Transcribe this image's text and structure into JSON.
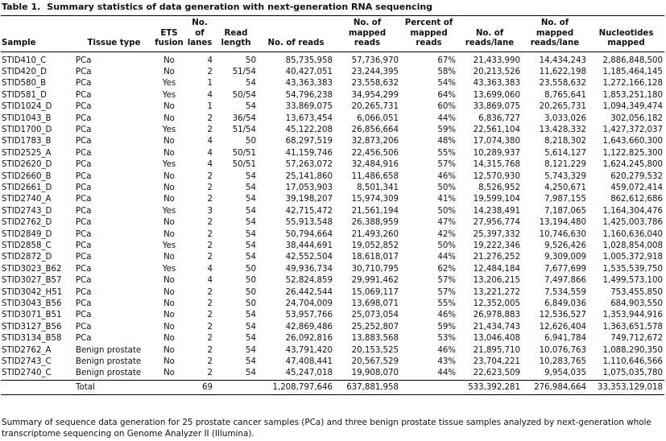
{
  "header": {
    "label": "Table 1.",
    "title": "Summary statistics of data generation with next-generation RNA sequencing"
  },
  "table": {
    "columns": [
      "Sample",
      "Tissue type",
      "ETS fusion",
      "No. of lanes",
      "Read length",
      "No. of reads",
      "No. of mapped reads",
      "Percent of mapped reads",
      "No. of reads/lane",
      "No. of mapped reads/lane",
      "Nucleotides mapped"
    ],
    "rows": [
      [
        "STID410_C",
        "PCa",
        "No",
        "4",
        "50",
        "85,735,958",
        "57,736,970",
        "67%",
        "21,433,990",
        "14,434,243",
        "2,886,848,500"
      ],
      [
        "STID420_D",
        "PCa",
        "No",
        "2",
        "51/54",
        "40,427,051",
        "23,244,395",
        "58%",
        "20,213,526",
        "11,622,198",
        "1,185,464,145"
      ],
      [
        "STID580_B",
        "PCa",
        "Yes",
        "1",
        "54",
        "43,363,383",
        "23,558,632",
        "54%",
        "43,363,383",
        "23,558,632",
        "1,272,166,128"
      ],
      [
        "STID581_D",
        "PCa",
        "Yes",
        "4",
        "50/54",
        "54,796,238",
        "34,954,299",
        "64%",
        "13,699,060",
        "8,765,641",
        "1,853,251,180"
      ],
      [
        "STID1024_D",
        "PCa",
        "No",
        "1",
        "54",
        "33,869,075",
        "20,265,731",
        "60%",
        "33,869,075",
        "20,265,731",
        "1,094,349,474"
      ],
      [
        "STID1043_B",
        "PCa",
        "No",
        "2",
        "36/54",
        "13,673,454",
        "6,066,051",
        "44%",
        "6,836,727",
        "3,033,026",
        "302,056,182"
      ],
      [
        "STID1700_D",
        "PCa",
        "Yes",
        "2",
        "51/54",
        "45,122,208",
        "26,856,664",
        "59%",
        "22,561,104",
        "13,428,332",
        "1,427,372,037"
      ],
      [
        "STID1783_B",
        "PCa",
        "No",
        "4",
        "50",
        "68,297,519",
        "32,873,206",
        "48%",
        "17,074,380",
        "8,218,302",
        "1,643,660,300"
      ],
      [
        "STID2525_A",
        "PCa",
        "No",
        "4",
        "50/51",
        "41,159,746",
        "22,456,506",
        "55%",
        "10,289,937",
        "5,614,127",
        "1,122,825,300"
      ],
      [
        "STID2620_D",
        "PCa",
        "Yes",
        "4",
        "50/51",
        "57,263,072",
        "32,484,916",
        "57%",
        "14,315,768",
        "8,121,229",
        "1,624,245,800"
      ],
      [
        "STID2660_B",
        "PCa",
        "No",
        "2",
        "54",
        "25,141,860",
        "11,486,658",
        "46%",
        "12,570,930",
        "5,743,329",
        "620,279,532"
      ],
      [
        "STID2661_D",
        "PCa",
        "No",
        "2",
        "54",
        "17,053,903",
        "8,501,341",
        "50%",
        "8,526,952",
        "4,250,671",
        "459,072,414"
      ],
      [
        "STID2740_A",
        "PCa",
        "No",
        "2",
        "54",
        "39,198,207",
        "15,974,309",
        "41%",
        "19,599,104",
        "7,987,155",
        "862,612,686"
      ],
      [
        "STID2743_D",
        "PCa",
        "Yes",
        "3",
        "54",
        "42,715,472",
        "21,561,194",
        "50%",
        "14,238,491",
        "7,187,065",
        "1,164,304,476"
      ],
      [
        "STID2762_D",
        "PCa",
        "No",
        "2",
        "54",
        "55,913,548",
        "26,388,959",
        "47%",
        "27,956,774",
        "13,194,480",
        "1,425,003,786"
      ],
      [
        "STID2849_D",
        "PCa",
        "No",
        "2",
        "54",
        "50,794,664",
        "21,493,260",
        "42%",
        "25,397,332",
        "10,746,630",
        "1,160,636,040"
      ],
      [
        "STID2858_C",
        "PCa",
        "Yes",
        "2",
        "54",
        "38,444,691",
        "19,052,852",
        "50%",
        "19,222,346",
        "9,526,426",
        "1,028,854,008"
      ],
      [
        "STID2872_D",
        "PCa",
        "No",
        "2",
        "54",
        "42,552,504",
        "18,618,017",
        "44%",
        "21,276,252",
        "9,309,009",
        "1,005,372,918"
      ],
      [
        "STID3023_B62",
        "PCa",
        "Yes",
        "4",
        "50",
        "49,936,734",
        "30,710,795",
        "62%",
        "12,484,184",
        "7,677,699",
        "1,535,539,750"
      ],
      [
        "STID3027_B57",
        "PCa",
        "No",
        "4",
        "50",
        "52,824,859",
        "29,991,462",
        "57%",
        "13,206,215",
        "7,497,866",
        "1,499,573,100"
      ],
      [
        "STID3042_H51",
        "PCa",
        "No",
        "2",
        "50",
        "26,442,544",
        "15,069,117",
        "57%",
        "13,221,272",
        "7,534,559",
        "753,455,850"
      ],
      [
        "STID3043_B56",
        "PCa",
        "No",
        "2",
        "50",
        "24,704,009",
        "13,698,071",
        "55%",
        "12,352,005",
        "6,849,036",
        "684,903,550"
      ],
      [
        "STID3071_B51",
        "PCa",
        "No",
        "2",
        "54",
        "53,957,766",
        "25,073,054",
        "46%",
        "26,978,883",
        "12,536,527",
        "1,353,944,916"
      ],
      [
        "STID3127_B56",
        "PCa",
        "No",
        "2",
        "54",
        "42,869,486",
        "25,252,807",
        "59%",
        "21,434,743",
        "12,626,404",
        "1,363,651,578"
      ],
      [
        "STID3134_B58",
        "PCa",
        "No",
        "2",
        "54",
        "26,092,816",
        "13,883,568",
        "53%",
        "13,046,408",
        "6,941,784",
        "749,712,672"
      ],
      [
        "STID2762_A",
        "Benign prostate",
        "No",
        "2",
        "54",
        "43,791,420",
        "20,153,525",
        "46%",
        "21,895,710",
        "10,076,763",
        "1,088,290,350"
      ],
      [
        "STID2743_C",
        "Benign prostate",
        "No",
        "2",
        "54",
        "47,408,441",
        "20,567,529",
        "43%",
        "23,704,221",
        "10,283,765",
        "1,110,646,566"
      ],
      [
        "STID2740_C",
        "Benign prostate",
        "No",
        "2",
        "54",
        "45,247,018",
        "19,908,070",
        "44%",
        "22,623,509",
        "9,954,035",
        "1,075,035,780"
      ]
    ],
    "total": [
      null,
      "Total",
      null,
      "69",
      null,
      "1,208,797,646",
      "637,881,958",
      null,
      "533,392,281",
      "276,984,664",
      "33,353,129,018"
    ]
  },
  "caption": "Summary of sequence data generation for 25 prostate cancer samples (PCa) and three benign prostate tissue samples analyzed by next-generation whole transcriptome sequencing on Genome Analyzer II (Illumina)."
}
